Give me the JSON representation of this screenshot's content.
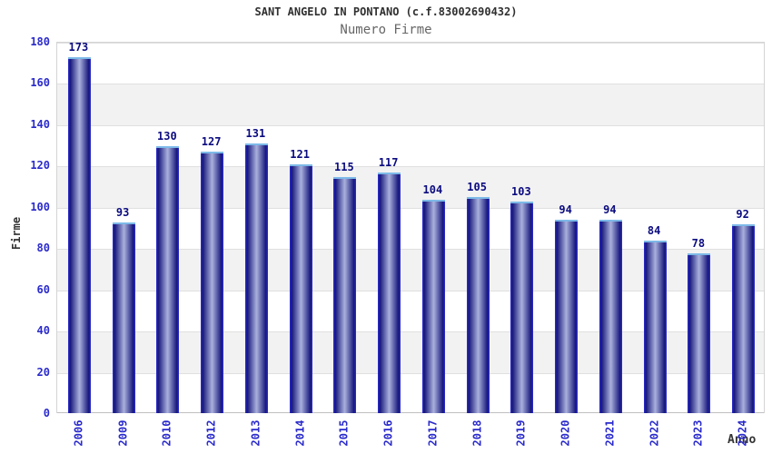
{
  "header": {
    "title": "SANT ANGELO IN PONTANO (c.f.83002690432)",
    "subtitle": "Numero Firme"
  },
  "chart_data": {
    "type": "bar",
    "title": "SANT ANGELO IN PONTANO (c.f.83002690432)",
    "subtitle": "Numero Firme",
    "xlabel": "Anno",
    "ylabel": "Firme",
    "categories": [
      "2006",
      "2009",
      "2010",
      "2012",
      "2013",
      "2014",
      "2015",
      "2016",
      "2017",
      "2018",
      "2019",
      "2020",
      "2021",
      "2022",
      "2023",
      "2024"
    ],
    "values": [
      173,
      93,
      130,
      127,
      131,
      121,
      115,
      117,
      104,
      105,
      103,
      94,
      94,
      84,
      78,
      92
    ],
    "ylim": [
      0,
      180
    ],
    "yticks": [
      0,
      20,
      40,
      60,
      80,
      100,
      120,
      140,
      160,
      180
    ],
    "grid": "horizontal gridlines every 20 units with alternating white/light-gray bands",
    "legend": "none",
    "bar_labels": "value shown above each bar"
  },
  "colors": {
    "background": "#ffffff",
    "tick_label": "#2a2acc",
    "value_label": "#0b0b80",
    "title_text": "#303030",
    "subtitle_text": "#666666",
    "axis_title_text": "#333333",
    "band_gray": "#f2f2f2",
    "gridline": "#e0e0e0",
    "plot_border": "#d4d4d4",
    "axis_line": "#c0c0c0",
    "bar_edge": "#2e2ed6",
    "bar_dark": "#17177c",
    "bar_light": "#aab1dc",
    "bar_cap": "#7db9e8"
  }
}
